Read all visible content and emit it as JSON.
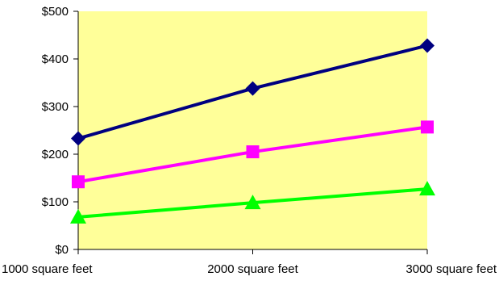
{
  "chart_data": {
    "type": "line",
    "title": "",
    "xlabel": "",
    "ylabel": "",
    "categories": [
      "1000 square feet",
      "2000 square feet",
      "3000 square feet"
    ],
    "ylim": [
      0,
      500
    ],
    "y_ticks": [
      0,
      100,
      200,
      300,
      400,
      500
    ],
    "y_tick_labels": [
      "$0",
      "$100",
      "$200",
      "$300",
      "$400",
      "$500"
    ],
    "grid": false,
    "legend": "none",
    "plot_background": "#FFFF99",
    "series": [
      {
        "values": [
          233,
          338,
          428
        ],
        "color": "#000080",
        "marker": "diamond"
      },
      {
        "values": [
          142,
          205,
          257
        ],
        "color": "#FF00FF",
        "marker": "square"
      },
      {
        "values": [
          68,
          98,
          127
        ],
        "color": "#00FF00",
        "marker": "triangle"
      }
    ]
  }
}
